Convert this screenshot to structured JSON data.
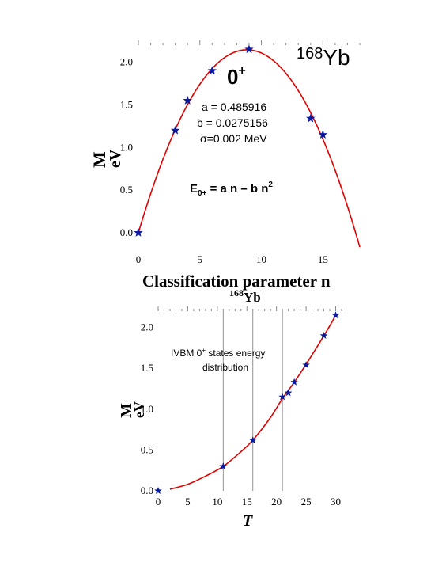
{
  "colors": {
    "curve": "#e00000",
    "points": "#0a1aa0",
    "text": "#000000",
    "grid": "#888888"
  },
  "icons": {
    "point_marker": "star-icon"
  },
  "chart_data": [
    {
      "type": "scatter",
      "title": "168Yb",
      "title_mass": "168",
      "title_element": "Yb",
      "state_label": "0",
      "state_sup": "+",
      "params": {
        "a_text": "a = 0.485916",
        "b_text": "b = 0.0275156",
        "sigma_text": "σ=0.002 MeV"
      },
      "formula": {
        "lhs": "E",
        "sub": "0+",
        "rhs": " = a n – b n",
        "sup": "2"
      },
      "xlabel": "Classification parameter  n",
      "ylabel_main": "M",
      "ylabel_rot": "eV",
      "xlim": [
        0,
        18
      ],
      "ylim": [
        0,
        2.2
      ],
      "x_ticks": [
        "0",
        "5",
        "10",
        "15"
      ],
      "x_tick_values": [
        0,
        5,
        10,
        15
      ],
      "y_ticks": [
        "0.0",
        "0.5",
        "1.0",
        "1.5",
        "2.0"
      ],
      "y_tick_values": [
        0,
        0.5,
        1.0,
        1.5,
        2.0
      ],
      "grid": "top dotted ticks only",
      "fit": {
        "a": 0.485916,
        "b": 0.0275156,
        "x_range": [
          0,
          18
        ]
      },
      "points": [
        {
          "x": 0,
          "y": 0.0
        },
        {
          "x": 3,
          "y": 1.2
        },
        {
          "x": 4,
          "y": 1.55
        },
        {
          "x": 6,
          "y": 1.9
        },
        {
          "x": 9,
          "y": 2.15
        },
        {
          "x": 14,
          "y": 1.34
        },
        {
          "x": 15,
          "y": 1.15
        }
      ]
    },
    {
      "type": "scatter",
      "title": "168Yb",
      "title_mass": "168",
      "title_element": "Yb",
      "annotation_line1": "IVBM 0",
      "annotation_sup": "+",
      "annotation_line1_rest": " states energy",
      "annotation_line2": "distribution",
      "xlabel": "T",
      "ylabel_main": "M",
      "ylabel_rot": "eV",
      "xlim": [
        0,
        31
      ],
      "ylim": [
        0,
        2.2
      ],
      "x_ticks": [
        "0",
        "5",
        "10",
        "15",
        "20",
        "25",
        "30"
      ],
      "x_tick_values": [
        0,
        5,
        10,
        15,
        20,
        25,
        30
      ],
      "y_ticks": [
        "0.0",
        "0.5",
        "1.0",
        "1.5",
        "2.0"
      ],
      "y_tick_values": [
        0,
        0.5,
        1.0,
        1.5,
        2.0
      ],
      "grid": "vertical lines at 11, 16, 21",
      "vertical_lines": [
        11,
        16,
        21
      ],
      "curve_points": [
        {
          "x": 2,
          "y": 0.02
        },
        {
          "x": 5,
          "y": 0.08
        },
        {
          "x": 8,
          "y": 0.18
        },
        {
          "x": 11,
          "y": 0.3
        },
        {
          "x": 14,
          "y": 0.48
        },
        {
          "x": 16,
          "y": 0.62
        },
        {
          "x": 19,
          "y": 0.9
        },
        {
          "x": 21,
          "y": 1.13
        },
        {
          "x": 23,
          "y": 1.33
        },
        {
          "x": 25,
          "y": 1.55
        },
        {
          "x": 27,
          "y": 1.78
        },
        {
          "x": 29,
          "y": 2.02
        },
        {
          "x": 30,
          "y": 2.15
        }
      ],
      "points": [
        {
          "x": 0,
          "y": 0.0
        },
        {
          "x": 11,
          "y": 0.3
        },
        {
          "x": 16,
          "y": 0.62
        },
        {
          "x": 21,
          "y": 1.15
        },
        {
          "x": 22,
          "y": 1.2
        },
        {
          "x": 23,
          "y": 1.33
        },
        {
          "x": 25,
          "y": 1.54
        },
        {
          "x": 28,
          "y": 1.9
        },
        {
          "x": 30,
          "y": 2.15
        }
      ]
    }
  ]
}
